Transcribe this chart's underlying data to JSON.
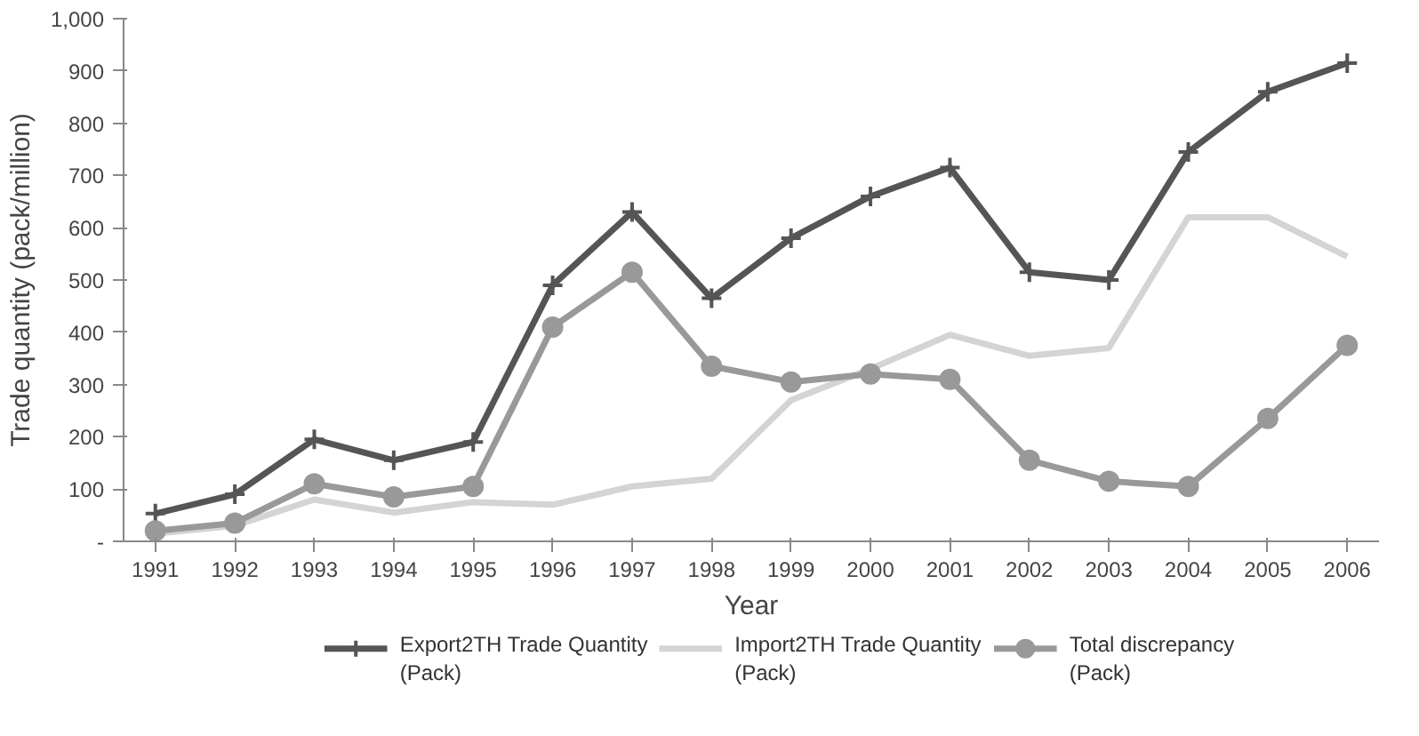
{
  "chart_data": {
    "type": "line",
    "xlabel": "Year",
    "ylabel": "Trade quantity (pack/million)",
    "x": [
      1991,
      1992,
      1993,
      1994,
      1995,
      1996,
      1997,
      1998,
      1999,
      2000,
      2001,
      2002,
      2003,
      2004,
      2005,
      2006
    ],
    "xlim": [
      1990.6,
      2006.4
    ],
    "xticks": [
      1991,
      1992,
      1993,
      1994,
      1995,
      1996,
      1997,
      1998,
      1999,
      2000,
      2001,
      2002,
      2003,
      2004,
      2005,
      2006
    ],
    "ylim": [
      0,
      1000
    ],
    "yticks": [
      {
        "value": 0,
        "label": "-"
      },
      100,
      200,
      300,
      400,
      500,
      600,
      700,
      800,
      900,
      {
        "value": 1000,
        "label": "1,000"
      }
    ],
    "grid": false,
    "legend": "bottom",
    "line_style": "solid",
    "series": [
      {
        "name": "Export2TH Trade Quantity\n(Pack)",
        "color": "#555555",
        "marker": "cross",
        "values": [
          53,
          90,
          195,
          155,
          190,
          490,
          630,
          465,
          580,
          660,
          715,
          515,
          500,
          745,
          860,
          915
        ]
      },
      {
        "name": "Import2TH Trade Quantity\n(Pack)",
        "color": "#d4d4d4",
        "marker": "none",
        "values": [
          15,
          30,
          80,
          55,
          75,
          70,
          105,
          120,
          270,
          330,
          395,
          355,
          370,
          620,
          620,
          545
        ]
      },
      {
        "name": "Total discrepancy\n(Pack)",
        "color": "#999999",
        "marker": "circle",
        "values": [
          20,
          35,
          110,
          85,
          105,
          410,
          515,
          335,
          305,
          320,
          310,
          155,
          115,
          105,
          235,
          375
        ]
      }
    ]
  }
}
